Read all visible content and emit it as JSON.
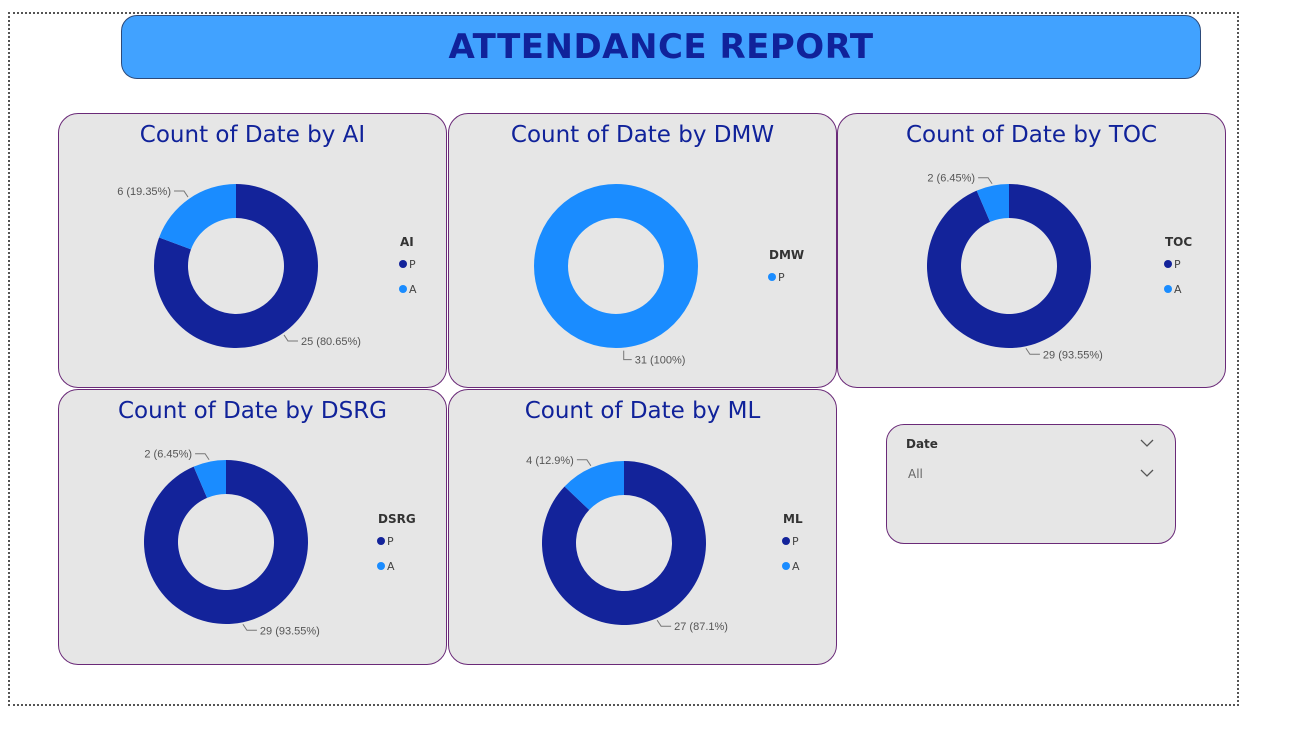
{
  "report": {
    "title": "ATTENDANCE REPORT"
  },
  "colors": {
    "P": "#13239a",
    "A": "#1a8cff",
    "card_bg": "#e6e6e6",
    "card_border": "#6a2a78",
    "title_text": "#10229a",
    "banner_bg": "#41a2ff"
  },
  "slicer": {
    "title": "Date",
    "value": "All",
    "header_icon": "chevron-down-icon",
    "value_icon": "chevron-down-icon"
  },
  "chart_data": [
    {
      "type": "pie",
      "title": "Count of Date by AI",
      "legend_title": "AI",
      "legend_placement": "right",
      "categories": [
        "P",
        "A"
      ],
      "values": [
        25,
        6
      ],
      "data_labels": [
        "25 (80.65%)",
        "6 (19.35%)"
      ]
    },
    {
      "type": "pie",
      "title": "Count of Date by DMW",
      "legend_title": "DMW",
      "legend_placement": "right",
      "categories": [
        "P"
      ],
      "values": [
        31
      ],
      "data_labels": [
        "31 (100%)"
      ]
    },
    {
      "type": "pie",
      "title": "Count of Date by TOC",
      "legend_title": "TOC",
      "legend_placement": "right",
      "categories": [
        "P",
        "A"
      ],
      "values": [
        29,
        2
      ],
      "data_labels": [
        "29 (93.55%)",
        "2 (6.45%)"
      ]
    },
    {
      "type": "pie",
      "title": "Count of Date by DSRG",
      "legend_title": "DSRG",
      "legend_placement": "right",
      "categories": [
        "P",
        "A"
      ],
      "values": [
        29,
        2
      ],
      "data_labels": [
        "29 (93.55%)",
        "2 (6.45%)"
      ]
    },
    {
      "type": "pie",
      "title": "Count of Date by ML",
      "legend_title": "ML",
      "legend_placement": "right",
      "categories": [
        "P",
        "A"
      ],
      "values": [
        27,
        4
      ],
      "data_labels": [
        "27 (87.1%)",
        "4 (12.9%)"
      ]
    }
  ]
}
